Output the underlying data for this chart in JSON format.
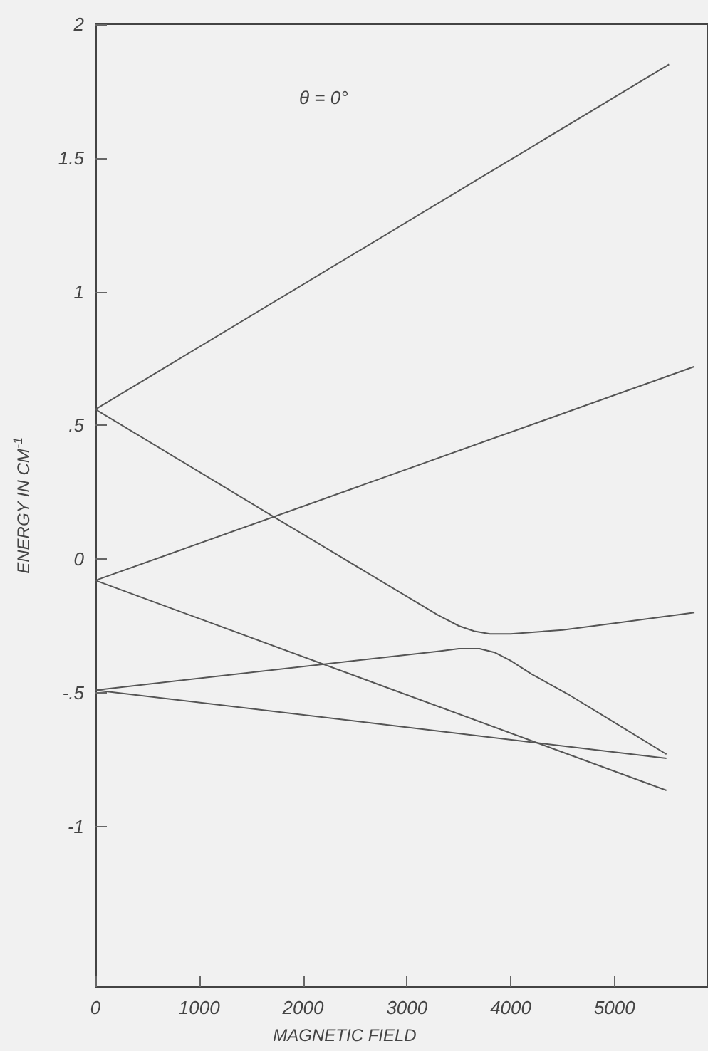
{
  "chart_data": {
    "type": "line",
    "xlabel": "MAGNETIC FIELD",
    "ylabel": "ENERGY IN CM$^{-1}$",
    "annotations": [
      "θ = 0°"
    ],
    "xlim": [
      0,
      5900
    ],
    "xticks": [
      0,
      1000,
      2000,
      3000,
      4000,
      5000
    ],
    "ylim": [
      -1.6,
      2
    ],
    "yticks": [
      {
        "value": -1,
        "label": "-1"
      },
      {
        "value": -0.5,
        "label": "-.5"
      },
      0,
      {
        "value": 0.5,
        "label": ".5"
      },
      1,
      1.5,
      2
    ],
    "grid": false,
    "marker": "none",
    "line_style": "solid",
    "series": [
      {
        "color": "#555555",
        "x": [
          0,
          5525
        ],
        "values": [
          0.56,
          1.85
        ]
      },
      {
        "color": "#555555",
        "x": [
          0,
          5770
        ],
        "values": [
          -0.08,
          0.72
        ]
      },
      {
        "color": "#555555",
        "x": [
          0,
          1710,
          3300,
          3500,
          3650,
          3800,
          4000,
          4500,
          5000,
          5770
        ],
        "values": [
          0.56,
          0.16,
          -0.21,
          -0.25,
          -0.27,
          -0.28,
          -0.28,
          -0.265,
          -0.24,
          -0.2
        ]
      },
      {
        "color": "#555555",
        "x": [
          0,
          5500
        ],
        "values": [
          -0.08,
          -0.865
        ]
      },
      {
        "color": "#555555",
        "x": [
          0,
          3300,
          3500,
          3700,
          3850,
          4000,
          4200,
          4550,
          5500
        ],
        "values": [
          -0.49,
          -0.345,
          -0.335,
          -0.335,
          -0.35,
          -0.38,
          -0.43,
          -0.505,
          -0.73
        ]
      },
      {
        "color": "#555555",
        "x": [
          0,
          5500
        ],
        "values": [
          -0.49,
          -0.745
        ]
      }
    ]
  }
}
